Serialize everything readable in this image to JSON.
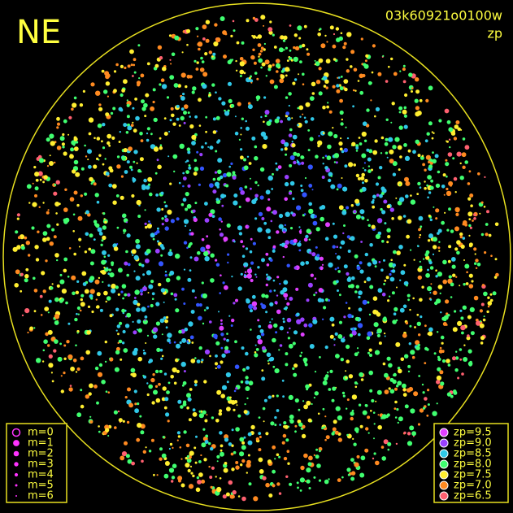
{
  "header": {
    "direction": "NE",
    "frame": "03k60921o0100w",
    "mode": "zp"
  },
  "magnitude_legend": {
    "color": "#ff33ff",
    "items": [
      {
        "label": "m=0"
      },
      {
        "label": "m=1"
      },
      {
        "label": "m=2"
      },
      {
        "label": "m=3"
      },
      {
        "label": "m=4"
      },
      {
        "label": "m=5"
      },
      {
        "label": "m=6"
      }
    ]
  },
  "zp_legend": {
    "items": [
      {
        "label": "zp=9.5",
        "color": "#e040ff"
      },
      {
        "label": "zp=9.0",
        "color": "#9a40ff"
      },
      {
        "label": "zp=8.5",
        "color": "#30c8e8"
      },
      {
        "label": "zp=8.0",
        "color": "#40ff70"
      },
      {
        "label": "zp=7.5",
        "color": "#ffee30"
      },
      {
        "label": "zp=7.0",
        "color": "#ff8a20"
      },
      {
        "label": "zp=6.5",
        "color": "#ff6070"
      }
    ]
  }
}
